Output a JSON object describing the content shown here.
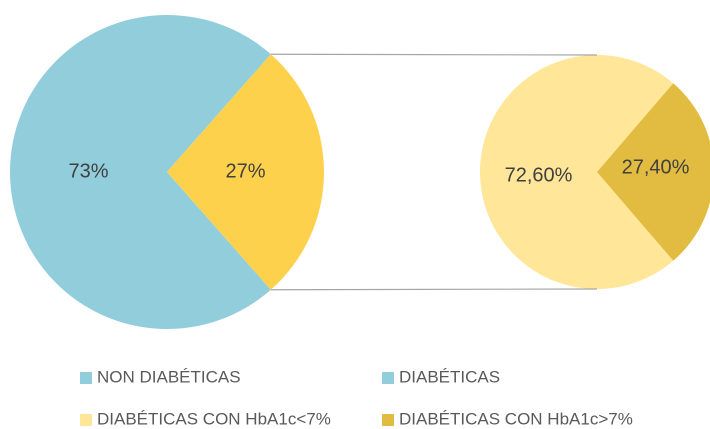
{
  "chart_data": [
    {
      "type": "pie",
      "values": [
        73,
        27
      ],
      "value_labels": [
        "73%",
        "27%"
      ],
      "colors": [
        "#92cddc",
        "#fed14d"
      ]
    },
    {
      "type": "pie",
      "values": [
        72.6,
        27.4
      ],
      "value_labels": [
        "72,60%",
        "27,40%"
      ],
      "colors": [
        "#ffe699",
        "#e2bc40"
      ]
    }
  ],
  "legend": [
    {
      "name": "NON DIABÉTICAS",
      "color": "#92cddc"
    },
    {
      "name": "DIABÉTICAS",
      "color": "#92cddc"
    },
    {
      "name": "DIABÉTICAS CON HbA1c<7%",
      "color": "#ffe699"
    },
    {
      "name": "DIABÉTICAS CON HbA1c>7%",
      "color": "#e2bc40"
    }
  ]
}
